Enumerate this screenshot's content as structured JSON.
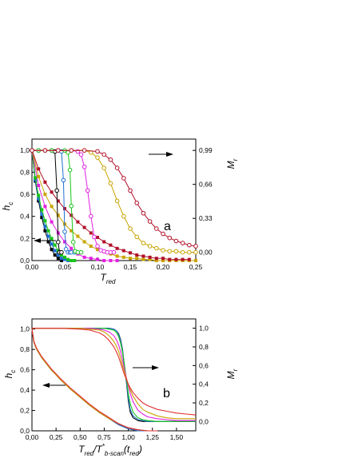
{
  "chart_data": [
    {
      "type": "scatter",
      "panel_label": "a",
      "xlabel_main": "T",
      "xlabel_sub": "red",
      "ylabel_main": "h",
      "ylabel_sub": "c",
      "y2label_main": "M",
      "y2label_sub": "r",
      "xlim": [
        0,
        0.25
      ],
      "ylim": [
        0,
        1.1
      ],
      "y2lim": [
        -0.08,
        1.1
      ],
      "x_ticks": [
        0.0,
        0.05,
        0.1,
        0.15,
        0.2,
        0.25
      ],
      "x_tick_labels": [
        "0,00",
        "0,05",
        "0,10",
        "0,15",
        "0,20",
        "0,25"
      ],
      "y_ticks": [
        0.0,
        0.2,
        0.4,
        0.6,
        0.8,
        1.0
      ],
      "y_tick_labels": [
        "0,0",
        "0,2",
        "0,4",
        "0,6",
        "0,8",
        "1,0"
      ],
      "y2_ticks": [
        0.0,
        0.33,
        0.66,
        0.99
      ],
      "y2_tick_labels": [
        "0,00",
        "0,33",
        "0,66",
        "0,99"
      ],
      "grid": false,
      "legend": "none",
      "series_hc": [
        {
          "color": "#000000",
          "x": [
            0.0,
            0.005,
            0.01,
            0.015,
            0.02,
            0.025,
            0.03,
            0.035,
            0.04,
            0.045
          ],
          "values": [
            1.0,
            0.72,
            0.54,
            0.39,
            0.27,
            0.17,
            0.1,
            0.05,
            0.02,
            0.0
          ]
        },
        {
          "color": "#1f6fd1",
          "x": [
            0.0,
            0.005,
            0.01,
            0.015,
            0.02,
            0.025,
            0.03,
            0.035,
            0.04,
            0.045,
            0.05,
            0.055
          ],
          "values": [
            1.0,
            0.73,
            0.56,
            0.42,
            0.31,
            0.22,
            0.15,
            0.09,
            0.05,
            0.02,
            0.01,
            0.0
          ]
        },
        {
          "color": "#19c419",
          "x": [
            0.0,
            0.005,
            0.01,
            0.015,
            0.02,
            0.025,
            0.03,
            0.035,
            0.04,
            0.045,
            0.05,
            0.055,
            0.06,
            0.065
          ],
          "values": [
            1.0,
            0.75,
            0.59,
            0.46,
            0.36,
            0.27,
            0.2,
            0.14,
            0.09,
            0.05,
            0.03,
            0.01,
            0.0,
            0.0
          ]
        },
        {
          "color": "#e020e0",
          "x": [
            0.0,
            0.01,
            0.02,
            0.03,
            0.04,
            0.05,
            0.06,
            0.07,
            0.08,
            0.09,
            0.1,
            0.11,
            0.12,
            0.13
          ],
          "values": [
            1.0,
            0.68,
            0.49,
            0.35,
            0.25,
            0.17,
            0.11,
            0.06,
            0.03,
            0.02,
            0.01,
            0.0,
            0.0,
            0.0
          ]
        },
        {
          "color": "#c8a400",
          "x": [
            0.0,
            0.01,
            0.02,
            0.03,
            0.04,
            0.05,
            0.06,
            0.07,
            0.08,
            0.09,
            0.1,
            0.11,
            0.12,
            0.13,
            0.14,
            0.15,
            0.16,
            0.17,
            0.18,
            0.19,
            0.2,
            0.21,
            0.22,
            0.23,
            0.24,
            0.25
          ],
          "values": [
            1.0,
            0.76,
            0.6,
            0.49,
            0.41,
            0.33,
            0.27,
            0.22,
            0.17,
            0.13,
            0.1,
            0.08,
            0.06,
            0.04,
            0.03,
            0.02,
            0.02,
            0.01,
            0.01,
            0.0,
            0.0,
            0.0,
            0.0,
            0.0,
            0.0,
            0.0
          ]
        },
        {
          "color": "#b0102a",
          "x": [
            0.0,
            0.01,
            0.02,
            0.03,
            0.04,
            0.05,
            0.06,
            0.07,
            0.08,
            0.09,
            0.1,
            0.11,
            0.12,
            0.13,
            0.14,
            0.15,
            0.16,
            0.17,
            0.18,
            0.19,
            0.2,
            0.21,
            0.22,
            0.23,
            0.24
          ],
          "values": [
            1.0,
            0.83,
            0.71,
            0.62,
            0.54,
            0.47,
            0.41,
            0.35,
            0.3,
            0.25,
            0.21,
            0.17,
            0.14,
            0.11,
            0.09,
            0.07,
            0.05,
            0.04,
            0.03,
            0.02,
            0.02,
            0.01,
            0.01,
            0.01,
            0.01
          ]
        }
      ],
      "series_mr": [
        {
          "color": "#000000",
          "x": [
            0.0,
            0.01,
            0.02,
            0.03,
            0.035,
            0.038,
            0.04,
            0.042,
            0.045
          ],
          "values": [
            0.99,
            0.99,
            0.99,
            0.99,
            0.98,
            0.6,
            0.1,
            0.0,
            0.0
          ]
        },
        {
          "color": "#1f6fd1",
          "x": [
            0.0,
            0.01,
            0.02,
            0.03,
            0.04,
            0.045,
            0.048,
            0.05,
            0.052,
            0.055,
            0.058,
            0.06,
            0.065
          ],
          "values": [
            0.99,
            0.99,
            0.99,
            0.99,
            0.99,
            0.98,
            0.7,
            0.2,
            0.03,
            0.0,
            0.0,
            0.0,
            0.0
          ]
        },
        {
          "color": "#19c419",
          "x": [
            0.0,
            0.01,
            0.02,
            0.03,
            0.04,
            0.05,
            0.055,
            0.058,
            0.06,
            0.063,
            0.066,
            0.07,
            0.075
          ],
          "values": [
            0.99,
            0.99,
            0.99,
            0.99,
            0.99,
            0.99,
            0.97,
            0.8,
            0.45,
            0.1,
            0.01,
            0.0,
            0.0
          ]
        },
        {
          "color": "#e020e0",
          "x": [
            0.0,
            0.02,
            0.04,
            0.06,
            0.07,
            0.075,
            0.08,
            0.085,
            0.09,
            0.095,
            0.1,
            0.105,
            0.11,
            0.115,
            0.12,
            0.125
          ],
          "values": [
            0.99,
            0.99,
            0.99,
            0.99,
            0.98,
            0.95,
            0.83,
            0.6,
            0.35,
            0.15,
            0.06,
            0.02,
            0.01,
            0.0,
            0.0,
            0.0
          ]
        },
        {
          "color": "#c8a400",
          "x": [
            0.0,
            0.02,
            0.04,
            0.06,
            0.08,
            0.09,
            0.1,
            0.11,
            0.12,
            0.13,
            0.14,
            0.15,
            0.16,
            0.17,
            0.18,
            0.19,
            0.2,
            0.21,
            0.22,
            0.23,
            0.24,
            0.25
          ],
          "values": [
            0.99,
            0.99,
            0.99,
            0.99,
            0.99,
            0.97,
            0.92,
            0.82,
            0.67,
            0.5,
            0.35,
            0.23,
            0.15,
            0.09,
            0.06,
            0.04,
            0.02,
            0.01,
            0.01,
            0.0,
            0.0,
            0.0
          ]
        },
        {
          "color": "#b0102a",
          "x": [
            0.0,
            0.02,
            0.04,
            0.06,
            0.08,
            0.1,
            0.11,
            0.12,
            0.13,
            0.14,
            0.15,
            0.16,
            0.17,
            0.18,
            0.19,
            0.2,
            0.21,
            0.22,
            0.23,
            0.24,
            0.25
          ],
          "values": [
            0.99,
            0.99,
            0.99,
            0.99,
            0.99,
            0.98,
            0.95,
            0.9,
            0.82,
            0.72,
            0.6,
            0.48,
            0.38,
            0.3,
            0.23,
            0.18,
            0.14,
            0.11,
            0.09,
            0.07,
            0.06
          ]
        }
      ]
    },
    {
      "type": "line",
      "panel_label": "b",
      "xlabel_parts": {
        "t1": "T",
        "t1_sub": "red",
        "slash": "/T",
        "t2_sup": "*",
        "t2_sub": "b-scan",
        "tail": "(t",
        "tail_sub": "red",
        "close": ")"
      },
      "ylabel_main": "h",
      "ylabel_sub": "c",
      "y2label_main": "M",
      "y2label_sub": "r",
      "xlim": [
        0,
        1.7
      ],
      "ylim": [
        0,
        1.1
      ],
      "y2lim": [
        -0.1,
        1.1
      ],
      "x_ticks": [
        0.0,
        0.25,
        0.5,
        0.75,
        1.0,
        1.25,
        1.5
      ],
      "x_tick_labels": [
        "0,00",
        "0,25",
        "0,50",
        "0,75",
        "1,00",
        "1,25",
        "1,50"
      ],
      "y_ticks": [
        0.0,
        0.2,
        0.4,
        0.6,
        0.8,
        1.0
      ],
      "y_tick_labels": [
        "0,0",
        "0,2",
        "0,4",
        "0,6",
        "0,8",
        "1,0"
      ],
      "y2_ticks": [
        0.0,
        0.2,
        0.4,
        0.6,
        0.8,
        1.0
      ],
      "y2_tick_labels": [
        "0,0",
        "0,2",
        "0,4",
        "0,6",
        "0,8",
        "1,0"
      ],
      "grid": false,
      "legend": "none",
      "hc_x": [
        0.0,
        0.02,
        0.05,
        0.1,
        0.15,
        0.2,
        0.3,
        0.4,
        0.5,
        0.6,
        0.7,
        0.8,
        0.9,
        1.0,
        1.1,
        1.2,
        1.3
      ],
      "series_hc": [
        {
          "color": "#000000",
          "values": [
            1.0,
            0.87,
            0.8,
            0.72,
            0.66,
            0.6,
            0.5,
            0.41,
            0.33,
            0.25,
            0.18,
            0.12,
            0.06,
            0.02,
            0.0,
            0.0,
            0.0
          ]
        },
        {
          "color": "#1f6fd1",
          "values": [
            1.0,
            0.87,
            0.8,
            0.72,
            0.66,
            0.6,
            0.5,
            0.41,
            0.33,
            0.25,
            0.18,
            0.12,
            0.06,
            0.02,
            0.0,
            0.0,
            0.0
          ]
        },
        {
          "color": "#19c419",
          "values": [
            1.0,
            0.87,
            0.8,
            0.72,
            0.66,
            0.6,
            0.5,
            0.41,
            0.33,
            0.25,
            0.18,
            0.12,
            0.07,
            0.03,
            0.01,
            0.0,
            0.0
          ]
        },
        {
          "color": "#e020e0",
          "values": [
            1.0,
            0.87,
            0.8,
            0.72,
            0.66,
            0.6,
            0.5,
            0.41,
            0.33,
            0.25,
            0.18,
            0.12,
            0.07,
            0.03,
            0.01,
            0.0,
            0.0
          ]
        },
        {
          "color": "#c8a400",
          "values": [
            1.0,
            0.87,
            0.8,
            0.72,
            0.66,
            0.6,
            0.5,
            0.41,
            0.33,
            0.25,
            0.18,
            0.12,
            0.07,
            0.03,
            0.01,
            0.0,
            0.0
          ]
        },
        {
          "color": "#e03030",
          "values": [
            1.0,
            0.88,
            0.81,
            0.73,
            0.67,
            0.61,
            0.51,
            0.42,
            0.34,
            0.26,
            0.19,
            0.13,
            0.07,
            0.03,
            0.01,
            0.0,
            0.0
          ]
        }
      ],
      "mr_x": [
        0.0,
        0.3,
        0.5,
        0.6,
        0.7,
        0.75,
        0.8,
        0.85,
        0.88,
        0.9,
        0.92,
        0.94,
        0.96,
        0.98,
        1.0,
        1.02,
        1.05,
        1.1,
        1.15,
        1.2,
        1.3,
        1.4,
        1.5,
        1.6,
        1.7
      ],
      "series_mr": [
        {
          "color": "#000000",
          "values": [
            1.0,
            1.0,
            1.0,
            1.0,
            1.0,
            1.0,
            1.0,
            0.99,
            0.97,
            0.94,
            0.88,
            0.77,
            0.58,
            0.42,
            0.22,
            0.1,
            0.04,
            0.01,
            0.0,
            0.0,
            0.0,
            0.0,
            0.0,
            0.0,
            0.0
          ]
        },
        {
          "color": "#1f6fd1",
          "values": [
            1.0,
            1.0,
            1.0,
            1.0,
            1.0,
            1.0,
            1.0,
            0.99,
            0.97,
            0.93,
            0.87,
            0.76,
            0.6,
            0.43,
            0.25,
            0.13,
            0.06,
            0.02,
            0.01,
            0.0,
            0.0,
            0.0,
            0.0,
            0.0,
            0.0
          ]
        },
        {
          "color": "#19c419",
          "values": [
            1.0,
            1.0,
            1.0,
            1.0,
            1.0,
            1.0,
            0.99,
            0.98,
            0.95,
            0.91,
            0.84,
            0.74,
            0.6,
            0.45,
            0.3,
            0.19,
            0.1,
            0.04,
            0.02,
            0.01,
            0.0,
            0.0,
            0.0,
            0.0,
            0.0
          ]
        },
        {
          "color": "#e020e0",
          "values": [
            1.0,
            1.0,
            1.0,
            1.0,
            0.99,
            0.98,
            0.96,
            0.92,
            0.87,
            0.82,
            0.75,
            0.66,
            0.56,
            0.47,
            0.38,
            0.3,
            0.21,
            0.12,
            0.08,
            0.05,
            0.03,
            0.02,
            0.01,
            0.01,
            0.01
          ]
        },
        {
          "color": "#c8a400",
          "values": [
            1.0,
            1.0,
            1.0,
            0.99,
            0.98,
            0.96,
            0.92,
            0.86,
            0.8,
            0.75,
            0.68,
            0.6,
            0.53,
            0.46,
            0.4,
            0.34,
            0.27,
            0.19,
            0.13,
            0.1,
            0.06,
            0.04,
            0.03,
            0.03,
            0.03
          ]
        },
        {
          "color": "#e03030",
          "values": [
            1.0,
            1.0,
            0.99,
            0.98,
            0.95,
            0.92,
            0.87,
            0.8,
            0.74,
            0.69,
            0.63,
            0.56,
            0.5,
            0.45,
            0.4,
            0.36,
            0.31,
            0.25,
            0.2,
            0.17,
            0.13,
            0.11,
            0.09,
            0.08,
            0.07
          ]
        }
      ]
    }
  ]
}
